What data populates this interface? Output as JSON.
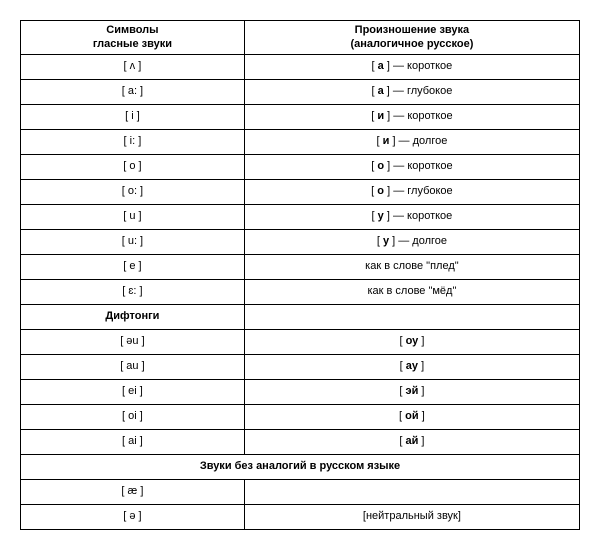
{
  "header": {
    "col1_line1": "Символы",
    "col1_line2": "гласные звуки",
    "col2_line1": "Произношение звука",
    "col2_line2": "(аналогичное русское)"
  },
  "vowels": [
    {
      "symbol": "[ ʌ ]",
      "pron_pre": "[ ",
      "pron_bold": "а",
      "pron_post": " ] — короткое"
    },
    {
      "symbol": "[ a: ]",
      "pron_pre": "[ ",
      "pron_bold": "а",
      "pron_post": " ] — глубокое"
    },
    {
      "symbol": "[ i ]",
      "pron_pre": "[ ",
      "pron_bold": "и",
      "pron_post": " ] — короткое"
    },
    {
      "symbol": "[ i: ]",
      "pron_pre": "[ ",
      "pron_bold": "и",
      "pron_post": " ] — долгое"
    },
    {
      "symbol": "[ o ]",
      "pron_pre": "[ ",
      "pron_bold": "о",
      "pron_post": " ] — короткое"
    },
    {
      "symbol": "[ o: ]",
      "pron_pre": "[ ",
      "pron_bold": "о",
      "pron_post": " ] — глубокое"
    },
    {
      "symbol": "[ u ]",
      "pron_pre": "[ ",
      "pron_bold": "у",
      "pron_post": " ] — короткое"
    },
    {
      "symbol": "[ u: ]",
      "pron_pre": "[ ",
      "pron_bold": "у",
      "pron_post": " ] — долгое"
    },
    {
      "symbol": "[ e ]",
      "pron_plain": "как в слове \"плед\""
    },
    {
      "symbol": "[ ɛ: ]",
      "pron_plain": "как в слове \"мёд\""
    }
  ],
  "diphthongs_header": "Дифтонги",
  "diphthongs": [
    {
      "symbol": "[ əu ]",
      "pron_pre": "[ ",
      "pron_bold": "оу",
      "pron_post": " ]"
    },
    {
      "symbol": "[ au ]",
      "pron_pre": "[ ",
      "pron_bold": "ау",
      "pron_post": " ]"
    },
    {
      "symbol": "[ ei ]",
      "pron_pre": "[ ",
      "pron_bold": "эй",
      "pron_post": " ]"
    },
    {
      "symbol": "[ oi ]",
      "pron_pre": "[ ",
      "pron_bold": "ой",
      "pron_post": " ]"
    },
    {
      "symbol": "[ ai ]",
      "pron_pre": "[ ",
      "pron_bold": "ай",
      "pron_post": " ]"
    }
  ],
  "no_analog_header": "Звуки без аналогий в русском языке",
  "no_analog": [
    {
      "symbol": "[ æ ]",
      "pron_plain": ""
    },
    {
      "symbol": "[ ə ]",
      "pron_plain": "[нейтральный звук]"
    }
  ]
}
